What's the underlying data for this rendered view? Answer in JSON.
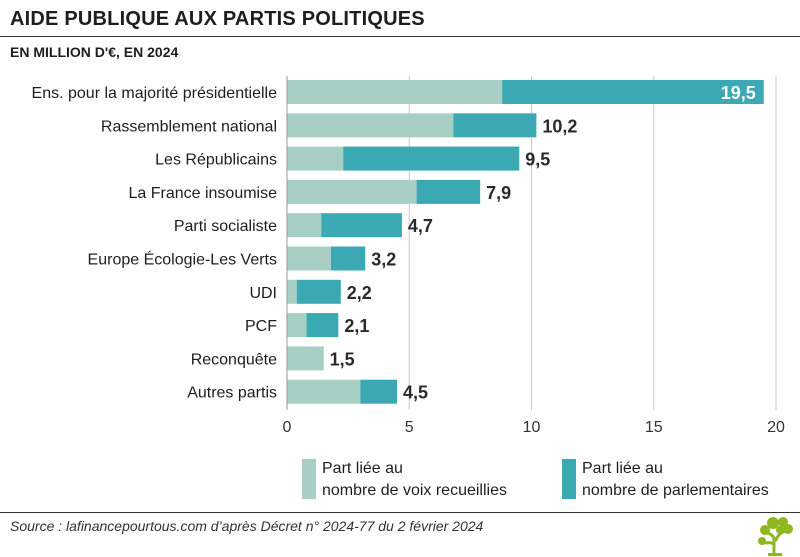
{
  "header": {
    "title": "AIDE PUBLIQUE AUX PARTIS POLITIQUES",
    "subtitle": "EN MILLION D'€, EN 2024"
  },
  "colors": {
    "votes": "#a7cfc3",
    "parliament": "#3aa9b4",
    "grid": "#c8c8c8",
    "axis": "#9a9a9a"
  },
  "chart_data": {
    "type": "bar",
    "orientation": "horizontal",
    "stacked": true,
    "categories": [
      "Ens. pour la majorité présidentielle",
      "Rassemblement national",
      "Les Républicains",
      "La France insoumise",
      "Parti socialiste",
      "Europe Écologie-Les Verts",
      "UDI",
      "PCF",
      "Reconquête",
      "Autres partis"
    ],
    "series": [
      {
        "name": "Part liée au nombre de voix recueillies",
        "values": [
          8.8,
          6.8,
          2.3,
          5.3,
          1.4,
          1.8,
          0.4,
          0.8,
          1.5,
          3.0
        ]
      },
      {
        "name": "Part liée au nombre de parlementaires",
        "values": [
          10.7,
          3.4,
          7.2,
          2.6,
          3.3,
          1.4,
          1.8,
          1.3,
          0.0,
          1.5
        ]
      }
    ],
    "totals": [
      "19,5",
      "10,2",
      "9,5",
      "7,9",
      "4,7",
      "3,2",
      "2,2",
      "2,1",
      "1,5",
      "4,5"
    ],
    "total_values": [
      19.5,
      10.2,
      9.5,
      7.9,
      4.7,
      3.2,
      2.2,
      2.1,
      1.5,
      4.5
    ],
    "xlim": [
      0,
      20
    ],
    "xticks": [
      0,
      5,
      10,
      15,
      20
    ],
    "grid": true,
    "legend_position": "bottom"
  },
  "legend": {
    "votes": {
      "line1": "Part liée au",
      "line2": "nombre de voix recueillies"
    },
    "parliament": {
      "line1": "Part liée au",
      "line2": "nombre de parlementaires"
    }
  },
  "footer": {
    "source": "Source : lafinancepourtous.com d’après Décret n° 2024-77 du 2 février 2024",
    "logo_icon": "tree-logo-icon"
  }
}
